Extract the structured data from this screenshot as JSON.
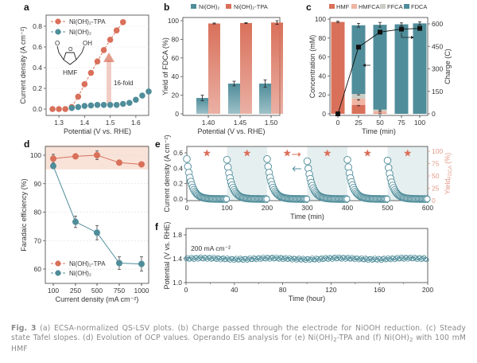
{
  "figure_title": "Fig. 3",
  "caption": {
    "label": "Fig. 3",
    "text_part1": " (a) ECSA-normalized QS-LSV plots. (b) Charge passed through the electrode for NiOOH reduction. (c) Steady state Tafel slopes. (d) Evolution of OCP values. Operando EIS analysis for (e) Ni(OH)",
    "sub1": "2",
    "text_part2": "-TPA and (f) Ni(OH)",
    "sub2": "2",
    "text_part3": " with 100 mM HMF"
  },
  "colors": {
    "tpa": "#d9705a",
    "base": "#4f8d9a",
    "hmf": "#d9705a",
    "hmfca": "#f0b4a3",
    "ffca": "#c9cdc4",
    "fdca": "#4f8d9a",
    "highlight": "#f9e3d9",
    "shade": "#e6eff0",
    "axis": "#333333"
  },
  "chart_data": [
    {
      "panel": "a",
      "type": "line",
      "xlabel": "Potential (V vs. RHE)",
      "ylabel": "Current density (A cm⁻²)",
      "xlim": [
        1.25,
        1.65
      ],
      "ylim": [
        -0.05,
        0.88
      ],
      "xticks": [
        1.3,
        1.4,
        1.5,
        1.6
      ],
      "yticks": [
        0.0,
        0.2,
        0.4,
        0.6,
        0.8
      ],
      "legend": "top-left",
      "annotations": [
        "HMF",
        "16-fold"
      ],
      "series": [
        {
          "name": "Ni(OH)₂-TPA",
          "color_key": "tpa",
          "x": [
            1.275,
            1.3,
            1.325,
            1.35,
            1.375,
            1.4,
            1.425,
            1.45,
            1.475,
            1.5,
            1.525,
            1.55
          ],
          "y": [
            0.0,
            0.0,
            0.0,
            0.02,
            0.12,
            0.24,
            0.35,
            0.46,
            0.57,
            0.67,
            0.76,
            0.84
          ]
        },
        {
          "name": "Ni(OH)₂",
          "color_key": "base",
          "x": [
            1.35,
            1.375,
            1.4,
            1.425,
            1.45,
            1.475,
            1.5,
            1.525,
            1.55,
            1.575,
            1.6,
            1.625,
            1.65
          ],
          "y": [
            0.01,
            0.02,
            0.03,
            0.035,
            0.04,
            0.04,
            0.04,
            0.04,
            0.05,
            0.06,
            0.09,
            0.13,
            0.17
          ]
        }
      ]
    },
    {
      "panel": "b",
      "type": "bar",
      "xlabel": "Potential (V vs. RHE)",
      "ylabel": "Yield of FDCA (%)",
      "categories": [
        "1.40",
        "1.45",
        "1.50"
      ],
      "ylim": [
        0,
        103
      ],
      "yticks": [
        0,
        20,
        40,
        60,
        80,
        100
      ],
      "legend": "top",
      "series": [
        {
          "name": "Ni(OH)₂",
          "color_key": "base",
          "values": [
            17,
            32.5,
            32.5
          ],
          "errors": [
            3,
            2.5,
            4
          ]
        },
        {
          "name": "Ni(OH)₂-TPA",
          "color_key": "tpa",
          "values": [
            97,
            97.5,
            98
          ],
          "errors": [
            0.5,
            0.5,
            2
          ]
        }
      ]
    },
    {
      "panel": "c",
      "type": "bar",
      "xlabel": "Time (min)",
      "ylabel": "Concentration (mM)",
      "y2label": "Charge (C)",
      "categories": [
        "0",
        "25",
        "50",
        "75",
        "100"
      ],
      "ylim": [
        0,
        103
      ],
      "yticks": [
        0,
        20,
        40,
        60,
        80,
        100
      ],
      "y2lim": [
        0,
        618
      ],
      "y2ticks": [
        0,
        150,
        300,
        450,
        600
      ],
      "legend": "top",
      "stacked_series": [
        {
          "name": "HMF",
          "color_key": "hmf",
          "values": [
            97,
            9.5,
            0.5,
            0,
            0
          ],
          "errors": [
            0.8,
            1,
            0.5,
            0,
            0
          ]
        },
        {
          "name": "HMFCA",
          "color_key": "hmfca",
          "values": [
            0,
            6.5,
            2.5,
            0,
            0
          ],
          "errors": [
            0,
            1.5,
            1,
            0,
            0
          ]
        },
        {
          "name": "FFCA",
          "color_key": "ffca",
          "values": [
            0,
            5,
            1.5,
            0,
            0
          ],
          "errors": [
            0,
            1,
            0.5,
            0,
            0
          ]
        },
        {
          "name": "FDCA",
          "color_key": "fdca",
          "values": [
            0,
            72.5,
            89.5,
            94.5,
            95.5
          ],
          "errors": [
            0,
            2,
            2.5,
            1.5,
            1.5
          ]
        }
      ],
      "line_series": {
        "name": "Charge",
        "axis": "right",
        "values": [
          0,
          445,
          545,
          565,
          570
        ]
      }
    },
    {
      "panel": "d",
      "type": "line",
      "xlabel": "Current density (mA cm⁻²)",
      "ylabel": "Faradaic efficiency (%)",
      "categories": [
        "100",
        "250",
        "500",
        "750",
        "1000"
      ],
      "ylim": [
        55,
        103
      ],
      "yticks": [
        60,
        70,
        80,
        90,
        100
      ],
      "grid": true,
      "highlight_band": [
        95,
        103
      ],
      "legend": "bottom-left",
      "series": [
        {
          "name": "Ni(OH)₂-TPA",
          "color_key": "tpa",
          "values": [
            98.8,
            99.6,
            100,
            97.4,
            96.8
          ],
          "errors": [
            1.5,
            0.8,
            1.5,
            0.8,
            0.6
          ]
        },
        {
          "name": "Ni(OH)₂",
          "color_key": "base",
          "values": [
            96.2,
            76.6,
            72.8,
            62.1,
            61.8
          ],
          "errors": [
            0.8,
            2,
            2.5,
            2.2,
            2.5
          ]
        }
      ]
    },
    {
      "panel": "e",
      "type": "scatter",
      "xlabel": "Time (min)",
      "ylabel": "Current density (A cm⁻²)",
      "y2label": "Yield FDCA (%)",
      "xlim": [
        0,
        600
      ],
      "xticks": [
        0,
        100,
        200,
        300,
        400,
        500,
        600
      ],
      "ylim": [
        -0.03,
        0.66
      ],
      "yticks": [
        0.0,
        0.2,
        0.4,
        0.6
      ],
      "y2lim": [
        -4.5,
        100
      ],
      "y2ticks": [
        0,
        25,
        50,
        75,
        100
      ],
      "shaded_ranges": [
        [
          100,
          200
        ],
        [
          300,
          400
        ],
        [
          500,
          600
        ]
      ],
      "cycles": [
        {
          "start": 0,
          "j0": 0.52
        },
        {
          "start": 100,
          "j0": 0.51
        },
        {
          "start": 200,
          "j0": 0.52
        },
        {
          "start": 300,
          "j0": 0.49
        },
        {
          "start": 400,
          "j0": 0.51
        },
        {
          "start": 500,
          "j0": 0.5
        }
      ],
      "decay_tau_min": 12,
      "yield_points": {
        "x": [
          50,
          150,
          250,
          350,
          450,
          550
        ],
        "y": [
          96,
          96,
          96,
          96,
          96,
          96
        ]
      }
    },
    {
      "panel": "f",
      "type": "scatter",
      "xlabel": "Time (hour)",
      "ylabel": "Potential (V vs. RHE)",
      "xlim": [
        0,
        200
      ],
      "xticks": [
        0,
        40,
        80,
        120,
        160,
        200
      ],
      "ylim": [
        1.0,
        1.9
      ],
      "yticks": [
        1.0,
        1.4,
        1.8
      ],
      "annotation": "200 mA cm⁻²",
      "mean_potential": 1.4,
      "fluctuation": 0.025
    }
  ],
  "panels": {
    "a": {
      "label": "a",
      "legend": [
        "Ni(OH)₂-TPA",
        "Ni(OH)₂"
      ],
      "molecule": "HMF",
      "fold_note": "16-fold",
      "xlabel": "Potential (V vs. RHE)",
      "ylabel": "Current density (A cm⁻²)"
    },
    "b": {
      "label": "b",
      "legend": [
        "Ni(OH)₂",
        "Ni(OH)₂-TPA"
      ],
      "xlabel": "Potential (V vs. RHE)",
      "ylabel": "Yield of FDCA (%)"
    },
    "c": {
      "label": "c",
      "legend": [
        "HMF",
        "HMFCA",
        "FFCA",
        "FDCA"
      ],
      "xlabel": "Time (min)",
      "ylabel": "Concentration (mM)",
      "y2label": "Charge (C)"
    },
    "d": {
      "label": "d",
      "legend": [
        "Ni(OH)₂-TPA",
        "Ni(OH)₂"
      ],
      "xlabel": "Current density (mA cm⁻²)",
      "ylabel": "Faradaic efficiency (%)"
    },
    "e": {
      "label": "e",
      "xlabel": "Time (min)",
      "ylabel": "Current density (A cm⁻²)",
      "y2label": "Yield",
      "y2label_sub": "FDCA",
      "y2label_unit": " (%)"
    },
    "f": {
      "label": "f",
      "xlabel": "Time (hour)",
      "ylabel": "Potential (V vs. RHE)",
      "note": "200 mA cm⁻²"
    }
  }
}
